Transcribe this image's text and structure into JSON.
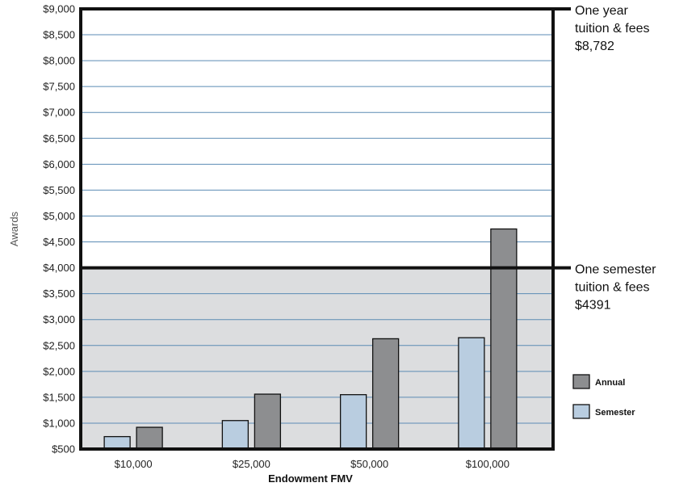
{
  "chart_data": {
    "type": "bar",
    "title": "",
    "xlabel": "Endowment FMV",
    "ylabel": "Awards",
    "categories": [
      "$10,000",
      "$25,000",
      "$50,000",
      "$100,000"
    ],
    "series": [
      {
        "name": "Semester",
        "values": [
          740,
          1050,
          1550,
          2650
        ],
        "color": "#b9cde0"
      },
      {
        "name": "Annual",
        "values": [
          920,
          1560,
          2630,
          4750
        ],
        "color": "#8d8e90"
      }
    ],
    "ylim": [
      500,
      9000
    ],
    "ytick_labels": [
      "$500",
      "$1,000",
      "$1,500",
      "$2,000",
      "$2,500",
      "$3,000",
      "$3,500",
      "$4,000",
      "$4,500",
      "$5,000",
      "$5,500",
      "$6,000",
      "$6,500",
      "$7,000",
      "$7,500",
      "$8,000",
      "$8,500",
      "$9,000"
    ],
    "grid": true,
    "grid_color": "#5b8bb4",
    "shaded_region_color": "#dcdddf",
    "legend_position": "right",
    "reference_lines": [
      {
        "value": 4000,
        "lines": [
          "One semester",
          "tuition & fees",
          "$4391"
        ]
      },
      {
        "value": 9000,
        "lines": [
          "One year",
          "tuition & fees",
          "$8,782"
        ]
      }
    ]
  }
}
